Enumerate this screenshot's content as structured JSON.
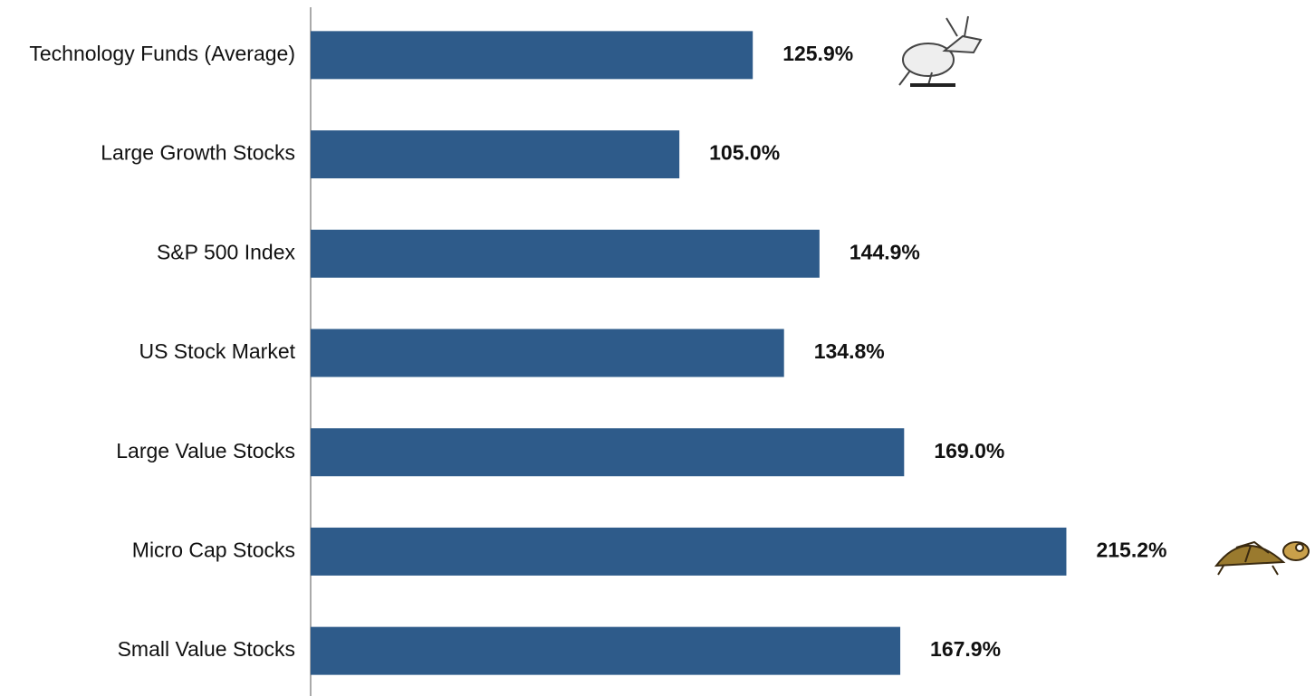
{
  "chart_data": {
    "type": "hbar",
    "categories": [
      "Technology Funds (Average)",
      "Large Growth Stocks",
      "S&P 500 Index",
      "US Stock Market",
      "Large Value Stocks",
      "Micro Cap Stocks",
      "Small Value Stocks"
    ],
    "values": [
      125.9,
      105.0,
      144.9,
      134.8,
      169.0,
      215.2,
      167.9
    ],
    "value_labels": [
      "125.9%",
      "105.0%",
      "144.9%",
      "134.8%",
      "169.0%",
      "215.2%",
      "167.9%"
    ],
    "color": "#2e5b8a",
    "xlim": [
      0,
      286
    ]
  }
}
